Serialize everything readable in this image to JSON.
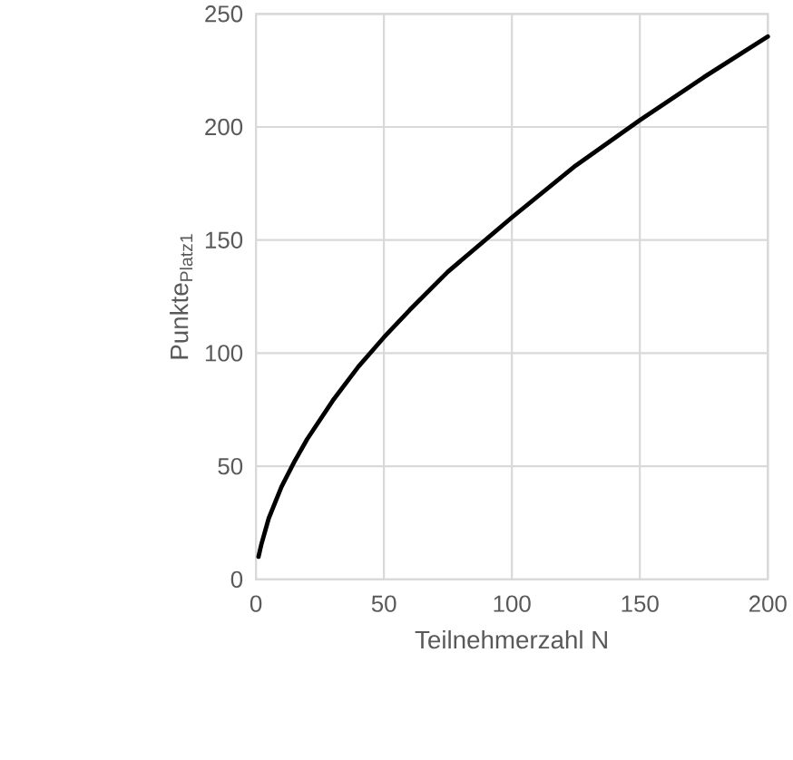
{
  "chart_data": {
    "type": "line",
    "xlabel": "Teilnehmerzahl N",
    "ylabel": "Punkte$_{Platz1}$",
    "x": [
      1,
      2,
      5,
      10,
      15,
      20,
      30,
      40,
      50,
      60,
      75,
      100,
      125,
      150,
      175,
      200
    ],
    "values": [
      10,
      15,
      27,
      41,
      52,
      62,
      79,
      94,
      107,
      119,
      136,
      160,
      183,
      203,
      222,
      240
    ],
    "color": "#000000",
    "xlim": [
      0,
      200
    ],
    "ylim": [
      0,
      250
    ],
    "xticks": [
      0,
      50,
      100,
      150,
      200
    ],
    "yticks": [
      0,
      50,
      100,
      150,
      200,
      250
    ],
    "grid": true
  }
}
